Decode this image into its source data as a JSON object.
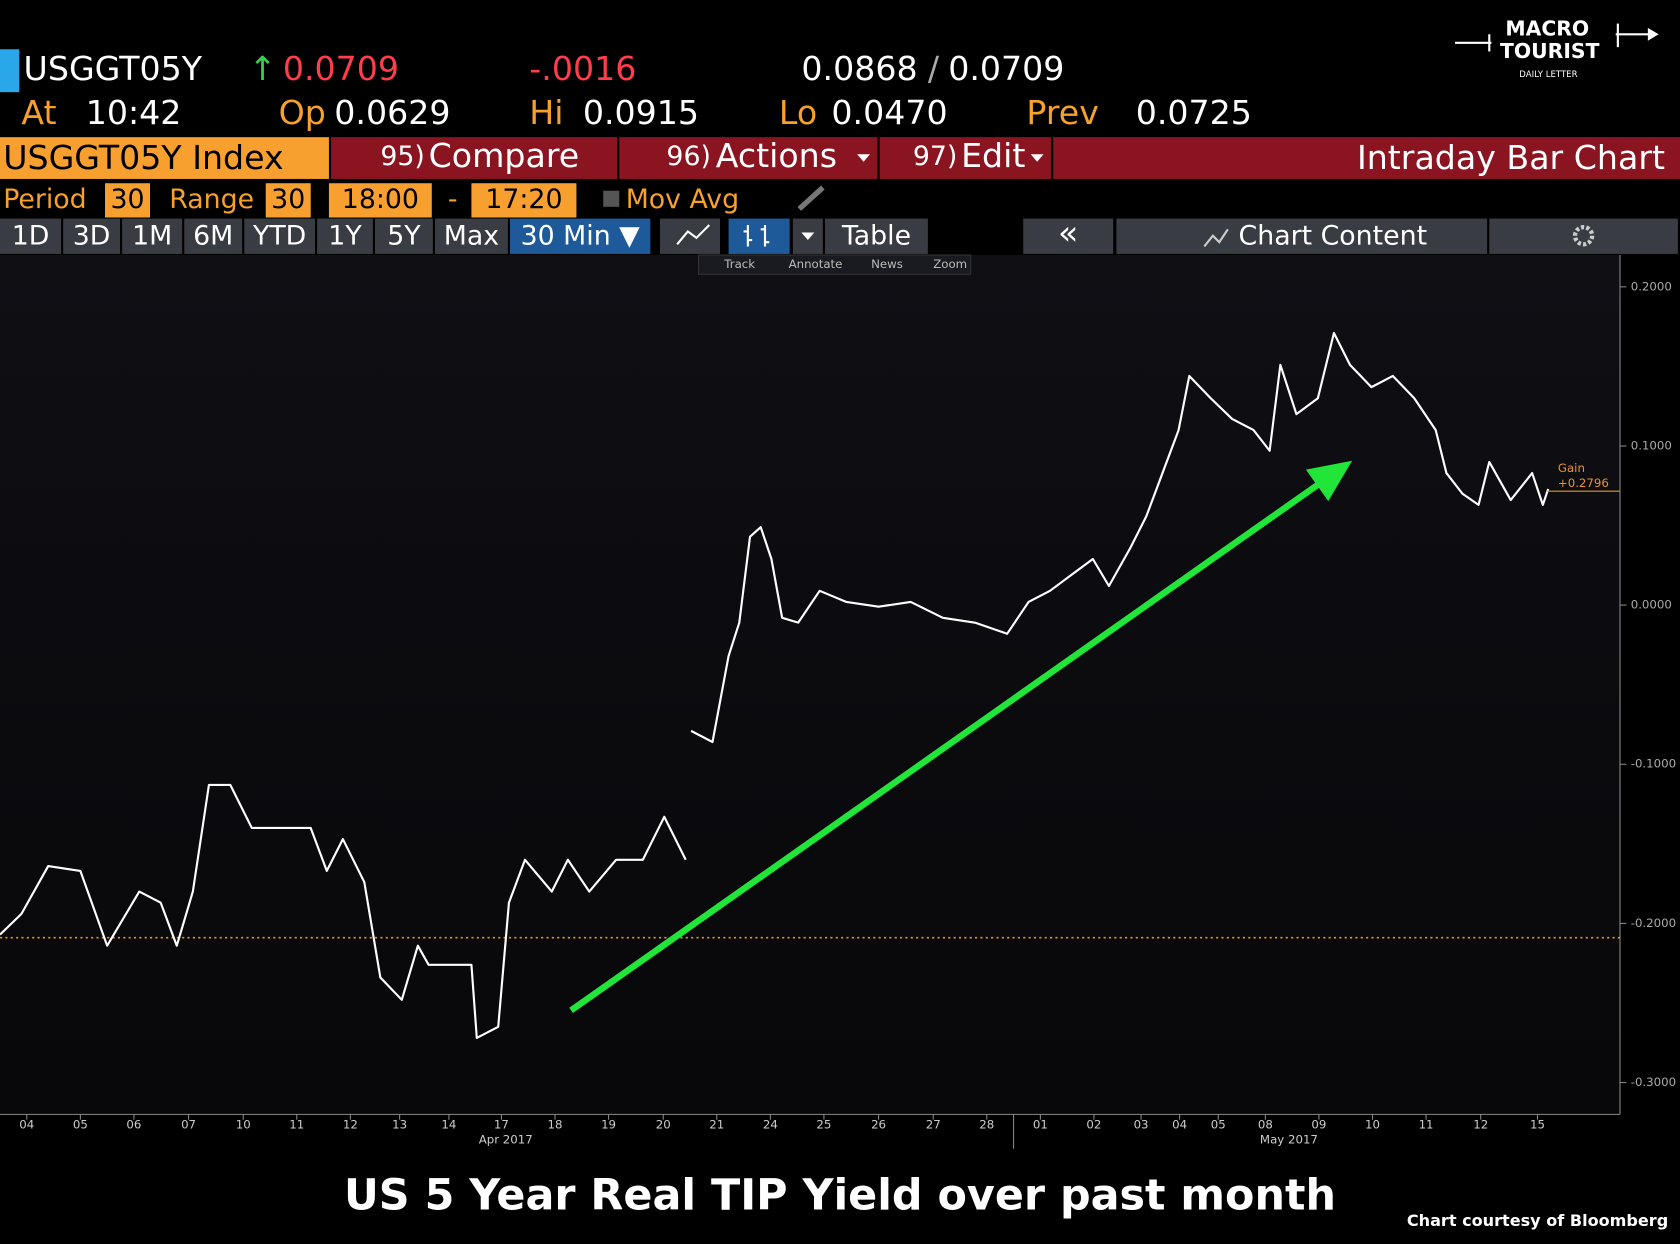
{
  "header": {
    "ticker": "USGGT05Y",
    "last": "0.0709",
    "change": "-.0016",
    "bid": "0.0868",
    "separator": "/",
    "ask": "0.0709",
    "time_label": "At",
    "time": "10:42",
    "open_label": "Op",
    "open": "0.0629",
    "high_label": "Hi",
    "high": "0.0915",
    "low_label": "Lo",
    "low": "0.0470",
    "prev_label": "Prev",
    "prev": "0.0725"
  },
  "logo": {
    "line1": "MACRO",
    "line2": "TOURIST",
    "line3": "DAILY LETTER"
  },
  "menu": {
    "security": "USGGT05Y Index",
    "items": [
      {
        "number": "95)",
        "label": "Compare"
      },
      {
        "number": "96)",
        "label": "Actions"
      },
      {
        "number": "97)",
        "label": "Edit"
      }
    ],
    "title": "Intraday Bar Chart"
  },
  "settings": {
    "period_label": "Period",
    "period": "30",
    "range_label": "Range",
    "range": "30",
    "start": "18:00",
    "dash": "-",
    "end": "17:20",
    "mov_avg": "Mov Avg"
  },
  "tabs": [
    "1D",
    "3D",
    "1M",
    "6M",
    "YTD",
    "1Y",
    "5Y",
    "Max",
    "30 Min ▼"
  ],
  "tools": {
    "table": "Table",
    "back": "«",
    "chart_content": "Chart Content"
  },
  "chart_tools": [
    "Track",
    "Annotate",
    "News",
    "Zoom"
  ],
  "chart_data": {
    "type": "line",
    "color": "#ffffff",
    "x": [
      0,
      0.4,
      0.9,
      1.5,
      2.0,
      2.6,
      3.0,
      3.3,
      3.6,
      3.9,
      4.3,
      4.7,
      5.2,
      5.8,
      6.1,
      6.4,
      6.8,
      7.1,
      7.5,
      7.8,
      8.0,
      8.8,
      8.9,
      9.3,
      9.5,
      9.8,
      10.3,
      10.6,
      11.0,
      11.5,
      12.0,
      12.4,
      12.8,
      12.85,
      12.9,
      13.3,
      13.6,
      13.8,
      14.0,
      14.2,
      14.4,
      14.6,
      14.9,
      15.3,
      15.8,
      16.4,
      17.0,
      17.6,
      18.2,
      18.8,
      19.2,
      19.6,
      20.0,
      20.4,
      20.7,
      21.1,
      21.4,
      21.7,
      22.0,
      22.2,
      22.6,
      23.0,
      23.4,
      23.7,
      23.9,
      24.2,
      24.6,
      24.9,
      25.2,
      25.6,
      26.0,
      26.4,
      26.8,
      27.0,
      27.3,
      27.6,
      27.8,
      28.2,
      28.6,
      28.8,
      28.9
    ],
    "values": [
      -0.207,
      -0.194,
      -0.164,
      -0.167,
      -0.214,
      -0.18,
      -0.187,
      -0.214,
      -0.18,
      -0.113,
      -0.113,
      -0.14,
      -0.14,
      -0.14,
      -0.167,
      -0.147,
      -0.174,
      -0.234,
      -0.248,
      -0.214,
      -0.226,
      -0.226,
      -0.272,
      -0.265,
      -0.187,
      -0.16,
      -0.18,
      -0.16,
      -0.18,
      -0.16,
      -0.16,
      -0.133,
      -0.16,
      null,
      -0.079,
      -0.086,
      -0.032,
      -0.011,
      0.043,
      0.049,
      0.029,
      -0.008,
      -0.011,
      0.009,
      0.002,
      -0.001,
      0.002,
      -0.008,
      -0.011,
      -0.018,
      0.002,
      0.009,
      0.019,
      0.029,
      0.012,
      0.036,
      0.056,
      0.083,
      0.11,
      0.144,
      0.13,
      0.117,
      0.11,
      0.097,
      0.151,
      0.12,
      0.13,
      0.171,
      0.151,
      0.137,
      0.144,
      0.13,
      0.11,
      0.083,
      0.07,
      0.063,
      0.09,
      0.066,
      0.083,
      0.063,
      0.073
    ],
    "xlim": [
      0,
      30.24
    ],
    "xticks": [
      {
        "value": 0.5,
        "label": "04"
      },
      {
        "value": 1.5,
        "label": "05"
      },
      {
        "value": 2.5,
        "label": "06"
      },
      {
        "value": 3.52,
        "label": "07"
      },
      {
        "value": 4.54,
        "label": "10"
      },
      {
        "value": 5.54,
        "label": "11"
      },
      {
        "value": 6.54,
        "label": "12"
      },
      {
        "value": 7.46,
        "label": "13"
      },
      {
        "value": 8.38,
        "label": "14"
      },
      {
        "value": 9.36,
        "label": "17"
      },
      {
        "value": 10.36,
        "label": "18"
      },
      {
        "value": 11.36,
        "label": "19"
      },
      {
        "value": 12.38,
        "label": "20"
      },
      {
        "value": 13.38,
        "label": "21"
      },
      {
        "value": 14.38,
        "label": "24"
      },
      {
        "value": 15.38,
        "label": "25"
      },
      {
        "value": 16.4,
        "label": "26"
      },
      {
        "value": 17.42,
        "label": "27"
      },
      {
        "value": 18.42,
        "label": "28"
      },
      {
        "value": 19.42,
        "label": "01"
      },
      {
        "value": 20.42,
        "label": "02"
      },
      {
        "value": 21.3,
        "label": "03"
      },
      {
        "value": 22.02,
        "label": "04"
      },
      {
        "value": 22.74,
        "label": "05"
      },
      {
        "value": 23.62,
        "label": "08"
      },
      {
        "value": 24.62,
        "label": "09"
      },
      {
        "value": 25.62,
        "label": "10"
      },
      {
        "value": 26.62,
        "label": "11"
      },
      {
        "value": 27.64,
        "label": "12"
      },
      {
        "value": 28.7,
        "label": "15"
      }
    ],
    "month_labels": [
      {
        "value": 9.44,
        "label": "Apr 2017"
      },
      {
        "value": 24.06,
        "label": "May 2017"
      }
    ],
    "month_divider": 18.92,
    "ylim": [
      -0.32,
      0.22
    ],
    "yticks": [
      {
        "value": 0.2,
        "label": "0.2000"
      },
      {
        "value": 0.1,
        "label": "0.1000"
      },
      {
        "value": 0,
        "label": "0.0000"
      },
      {
        "value": -0.1,
        "label": "-0.1000"
      },
      {
        "value": -0.2,
        "label": "-0.2000"
      },
      {
        "value": -0.3,
        "label": "-0.3000"
      }
    ],
    "grid": false,
    "reference_level": -0.209,
    "gain": {
      "label": "Gain",
      "value_label": "+0.2796",
      "level": 0.0716
    }
  },
  "caption": "US 5 Year Real TIP Yield over past month",
  "credit": "Chart courtesy of Bloomberg"
}
